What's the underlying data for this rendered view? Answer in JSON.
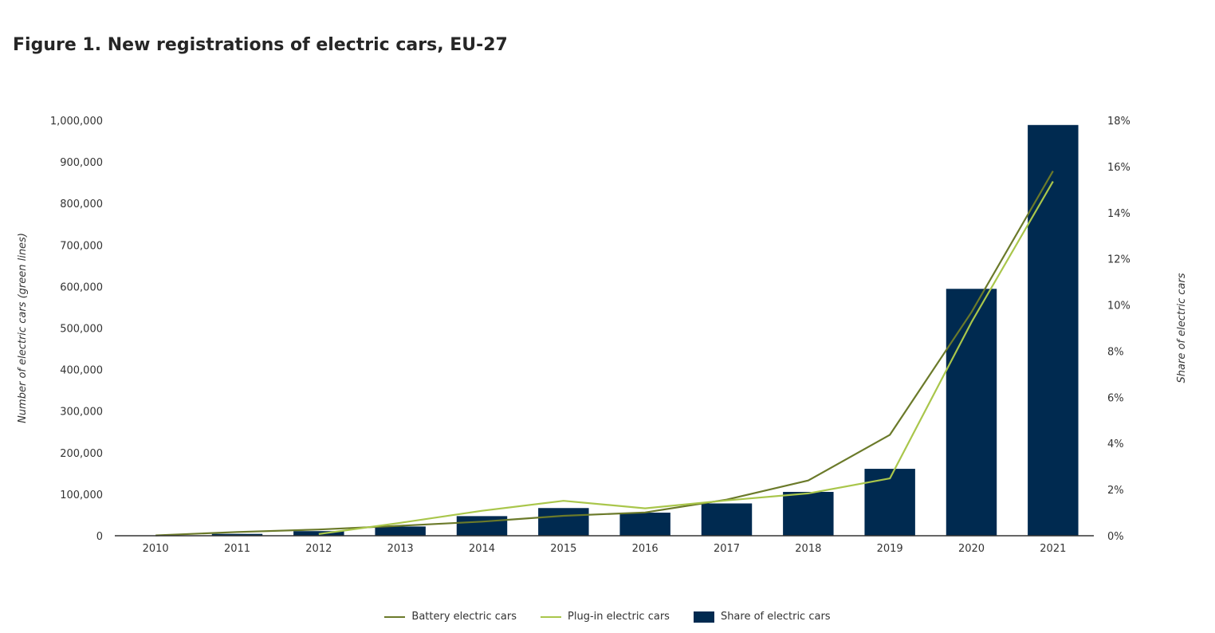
{
  "title": "Figure 1. New registrations of electric cars, EU-27",
  "chart_data": {
    "type": "bar",
    "title": "Figure 1. New registrations of electric cars, EU-27",
    "categories": [
      "2010",
      "2011",
      "2012",
      "2013",
      "2014",
      "2015",
      "2016",
      "2017",
      "2018",
      "2019",
      "2020",
      "2021"
    ],
    "ylabel": "Number of electric cars (green lines)",
    "y2label": "Share of electric cars",
    "ylim": [
      0,
      1000000
    ],
    "y2lim": [
      0,
      18
    ],
    "yticks": [
      "0",
      "100,000",
      "200,000",
      "300,000",
      "400,000",
      "500,000",
      "600,000",
      "700,000",
      "800,000",
      "900,000",
      "1,000,000"
    ],
    "y2ticks": [
      "0%",
      "2%",
      "4%",
      "6%",
      "8%",
      "10%",
      "12%",
      "14%",
      "16%",
      "18%"
    ],
    "grid": false,
    "legend": "bottom-center",
    "series": [
      {
        "name": "Battery electric cars",
        "type": "line",
        "axis": "left",
        "color": "#6b7a2a",
        "values": [
          700,
          9000,
          15000,
          24000,
          34000,
          48000,
          56000,
          87000,
          133000,
          243000,
          538000,
          878000
        ]
      },
      {
        "name": "Plug-in electric cars",
        "type": "line",
        "axis": "left",
        "color": "#a9c64b",
        "values": [
          null,
          null,
          4000,
          31000,
          60000,
          84000,
          66000,
          85000,
          102000,
          138000,
          514000,
          853000
        ]
      },
      {
        "name": "Share of electric cars",
        "type": "bar",
        "axis": "right",
        "color": "#002a50",
        "values": [
          0.0,
          0.08,
          0.2,
          0.4,
          0.85,
          1.2,
          1.0,
          1.4,
          1.9,
          2.9,
          10.7,
          17.8
        ]
      }
    ]
  }
}
